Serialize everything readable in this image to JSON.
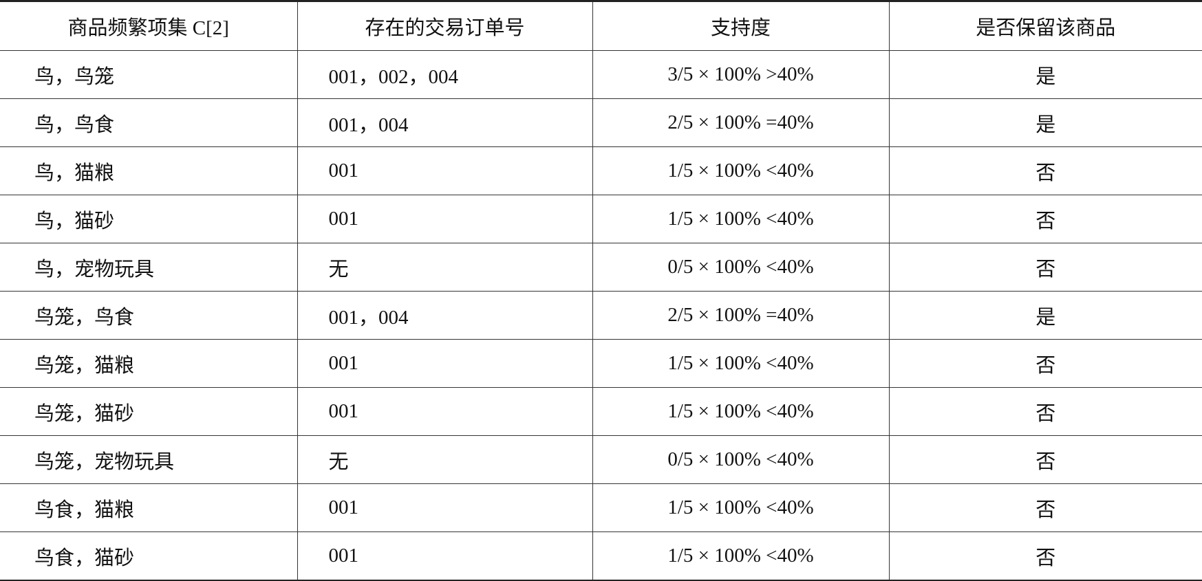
{
  "table": {
    "headers": [
      "商品频繁项集 C[2]",
      "存在的交易订单号",
      "支持度",
      "是否保留该商品"
    ],
    "rows": [
      [
        "鸟，鸟笼",
        "001，002，004",
        "3/5 × 100% >40%",
        "是"
      ],
      [
        "鸟，鸟食",
        "001，004",
        "2/5 × 100% =40%",
        "是"
      ],
      [
        "鸟，猫粮",
        "001",
        "1/5 × 100% <40%",
        "否"
      ],
      [
        "鸟，猫砂",
        "001",
        "1/5 × 100% <40%",
        "否"
      ],
      [
        "鸟，宠物玩具",
        "无",
        "0/5 × 100% <40%",
        "否"
      ],
      [
        "鸟笼，鸟食",
        "001，004",
        "2/5 × 100% =40%",
        "是"
      ],
      [
        "鸟笼，猫粮",
        "001",
        "1/5 × 100% <40%",
        "否"
      ],
      [
        "鸟笼，猫砂",
        "001",
        "1/5 × 100% <40%",
        "否"
      ],
      [
        "鸟笼，宠物玩具",
        "无",
        "0/5 × 100% <40%",
        "否"
      ],
      [
        "鸟食，猫粮",
        "001",
        "1/5 × 100% <40%",
        "否"
      ],
      [
        "鸟食，猫砂",
        "001",
        "1/5 × 100% <40%",
        "否"
      ]
    ]
  }
}
